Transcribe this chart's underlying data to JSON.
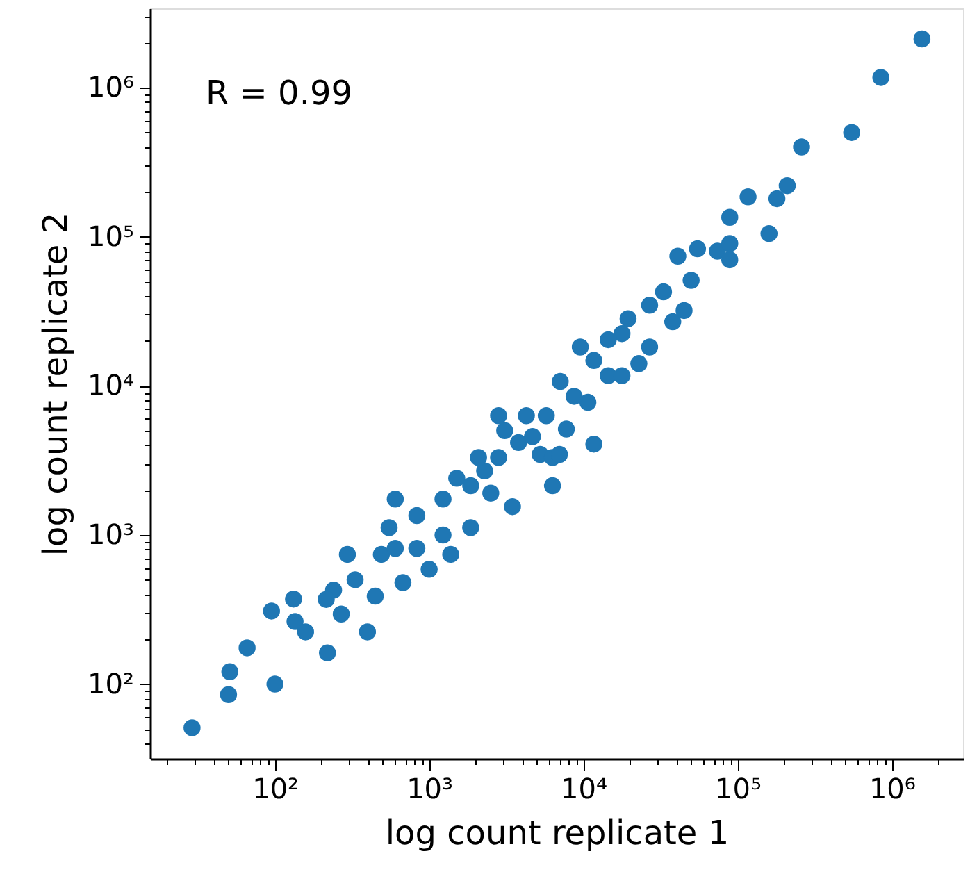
{
  "chart_data": {
    "type": "scatter",
    "xlabel": "log count replicate 1",
    "ylabel": "log count replicate 2",
    "annotations": [
      "R = 0.99"
    ],
    "log": "xy",
    "marker": "circle",
    "grid": false,
    "xlim": [
      15.5,
      2900000
    ],
    "ylim": [
      31.6,
      3400000
    ],
    "xticks": [
      {
        "value": 20,
        "label": null
      },
      {
        "value": 30,
        "label": null
      },
      {
        "value": 40,
        "label": null
      },
      {
        "value": 50,
        "label": null
      },
      {
        "value": 60,
        "label": null
      },
      {
        "value": 70,
        "label": null
      },
      {
        "value": 80,
        "label": null
      },
      {
        "value": 90,
        "label": null
      },
      {
        "value": 100,
        "label": "10²"
      },
      {
        "value": 200,
        "label": null
      },
      {
        "value": 300,
        "label": null
      },
      {
        "value": 400,
        "label": null
      },
      {
        "value": 500,
        "label": null
      },
      {
        "value": 600,
        "label": null
      },
      {
        "value": 700,
        "label": null
      },
      {
        "value": 800,
        "label": null
      },
      {
        "value": 900,
        "label": null
      },
      {
        "value": 1000,
        "label": "10³"
      },
      {
        "value": 2000,
        "label": null
      },
      {
        "value": 3000,
        "label": null
      },
      {
        "value": 4000,
        "label": null
      },
      {
        "value": 5000,
        "label": null
      },
      {
        "value": 6000,
        "label": null
      },
      {
        "value": 7000,
        "label": null
      },
      {
        "value": 8000,
        "label": null
      },
      {
        "value": 9000,
        "label": null
      },
      {
        "value": 10000,
        "label": "10⁴"
      },
      {
        "value": 20000,
        "label": null
      },
      {
        "value": 30000,
        "label": null
      },
      {
        "value": 40000,
        "label": null
      },
      {
        "value": 50000,
        "label": null
      },
      {
        "value": 60000,
        "label": null
      },
      {
        "value": 70000,
        "label": null
      },
      {
        "value": 80000,
        "label": null
      },
      {
        "value": 90000,
        "label": null
      },
      {
        "value": 100000,
        "label": "10⁵"
      },
      {
        "value": 200000,
        "label": null
      },
      {
        "value": 300000,
        "label": null
      },
      {
        "value": 400000,
        "label": null
      },
      {
        "value": 500000,
        "label": null
      },
      {
        "value": 600000,
        "label": null
      },
      {
        "value": 700000,
        "label": null
      },
      {
        "value": 800000,
        "label": null
      },
      {
        "value": 900000,
        "label": null
      },
      {
        "value": 1000000,
        "label": "10⁶"
      },
      {
        "value": 2000000,
        "label": null
      }
    ],
    "yticks": [
      {
        "value": 40,
        "label": null
      },
      {
        "value": 50,
        "label": null
      },
      {
        "value": 60,
        "label": null
      },
      {
        "value": 70,
        "label": null
      },
      {
        "value": 80,
        "label": null
      },
      {
        "value": 90,
        "label": null
      },
      {
        "value": 100,
        "label": "10²"
      },
      {
        "value": 200,
        "label": null
      },
      {
        "value": 300,
        "label": null
      },
      {
        "value": 400,
        "label": null
      },
      {
        "value": 500,
        "label": null
      },
      {
        "value": 600,
        "label": null
      },
      {
        "value": 700,
        "label": null
      },
      {
        "value": 800,
        "label": null
      },
      {
        "value": 900,
        "label": null
      },
      {
        "value": 1000,
        "label": "10³"
      },
      {
        "value": 2000,
        "label": null
      },
      {
        "value": 3000,
        "label": null
      },
      {
        "value": 4000,
        "label": null
      },
      {
        "value": 5000,
        "label": null
      },
      {
        "value": 6000,
        "label": null
      },
      {
        "value": 7000,
        "label": null
      },
      {
        "value": 8000,
        "label": null
      },
      {
        "value": 9000,
        "label": null
      },
      {
        "value": 10000,
        "label": "10⁴"
      },
      {
        "value": 20000,
        "label": null
      },
      {
        "value": 30000,
        "label": null
      },
      {
        "value": 40000,
        "label": null
      },
      {
        "value": 50000,
        "label": null
      },
      {
        "value": 60000,
        "label": null
      },
      {
        "value": 70000,
        "label": null
      },
      {
        "value": 80000,
        "label": null
      },
      {
        "value": 90000,
        "label": null
      },
      {
        "value": 100000,
        "label": "10⁵"
      },
      {
        "value": 200000,
        "label": null
      },
      {
        "value": 300000,
        "label": null
      },
      {
        "value": 400000,
        "label": null
      },
      {
        "value": 500000,
        "label": null
      },
      {
        "value": 600000,
        "label": null
      },
      {
        "value": 700000,
        "label": null
      },
      {
        "value": 800000,
        "label": null
      },
      {
        "value": 900000,
        "label": null
      },
      {
        "value": 1000000,
        "label": "10⁶"
      },
      {
        "value": 2000000,
        "label": null
      },
      {
        "value": 3000000,
        "label": null
      }
    ],
    "series": [
      {
        "color": "#1f77b4",
        "x": [
          29,
          51,
          50,
          100,
          66,
          95,
          132,
          135,
          219,
          269,
          331,
          398,
          490,
          676,
          832,
          1000,
          1230,
          1510,
          1860,
          2290,
          2820,
          3470,
          3800,
          4270,
          5250,
          6310,
          7080,
          7760,
          9550,
          10700,
          11700,
          14500,
          17800,
          19500,
          22900,
          26900,
          33100,
          38000,
          26900,
          295,
          550,
          832,
          1230,
          1860,
          2510,
          3090,
          4680,
          5750,
          8710,
          14500,
          158,
          240,
          447,
          603,
          603,
          1380,
          2090,
          2820,
          6310,
          11700,
          17800,
          215,
          7000,
          45000,
          50000,
          41000,
          55000,
          74000,
          89000,
          89000,
          89000,
          117000,
          160000,
          180000,
          210000,
          260000,
          550000,
          850000,
          1570000
        ],
        "values": [
          51,
          121,
          85,
          100,
          175,
          309,
          372,
          263,
          162,
          295,
          501,
          224,
          741,
          479,
          1350,
          589,
          1000,
          2400,
          1120,
          2690,
          3310,
          1550,
          4170,
          6310,
          3470,
          3310,
          10700,
          5130,
          18200,
          7760,
          4070,
          11700,
          22400,
          28200,
          14100,
          34700,
          42700,
          26900,
          18200,
          741,
          1120,
          813,
          1740,
          2140,
          1910,
          5010,
          4570,
          6310,
          8510,
          20400,
          224,
          427,
          389,
          1740,
          813,
          741,
          3310,
          6310,
          2140,
          14800,
          11700,
          370,
          3470,
          32000,
          51000,
          74000,
          83000,
          80000,
          70000,
          90000,
          135000,
          185000,
          105000,
          180000,
          220000,
          400000,
          500000,
          1170000,
          2120000
        ]
      }
    ]
  }
}
